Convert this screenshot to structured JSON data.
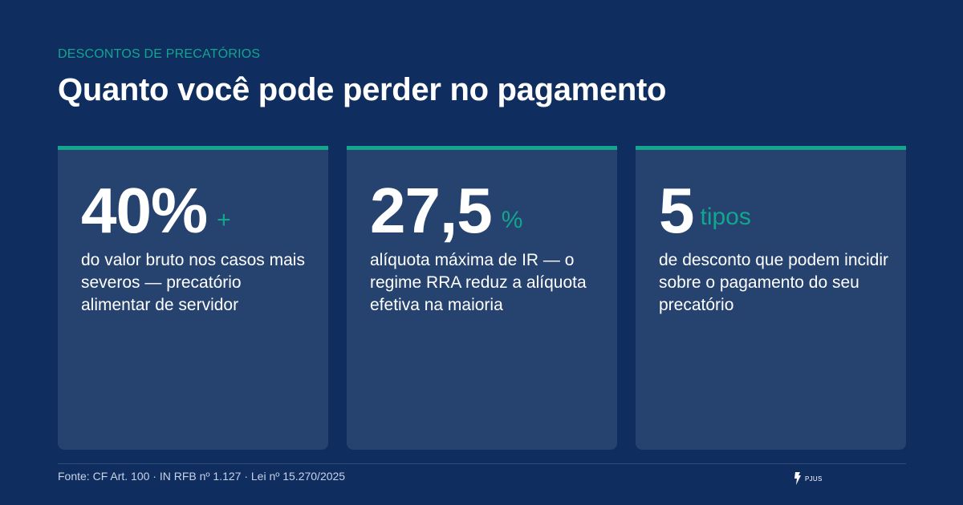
{
  "header": {
    "eyebrow": "DESCONTOS DE PRECATÓRIOS",
    "title": "Quanto você pode perder no pagamento"
  },
  "cards": [
    {
      "value": "40%",
      "suffix": "+",
      "description": "do valor bruto nos casos mais severos — precatório alimentar de servidor"
    },
    {
      "value": "27,5",
      "suffix": "%",
      "description": "alíquota máxima de IR — o regime RRA reduz a alíquota efetiva na maioria"
    },
    {
      "value": "5",
      "suffix": "tipos",
      "description": "de desconto que podem incidir sobre o pagamento do seu precatório"
    }
  ],
  "footer": {
    "source": "Fonte: CF Art. 100 · IN RFB nº 1.127 · Lei nº 15.270/2025",
    "logo_text": "PJUS"
  },
  "colors": {
    "background": "#0f2d5f",
    "card": "#26426e",
    "accent": "#12a68f",
    "text": "#ffffff"
  }
}
